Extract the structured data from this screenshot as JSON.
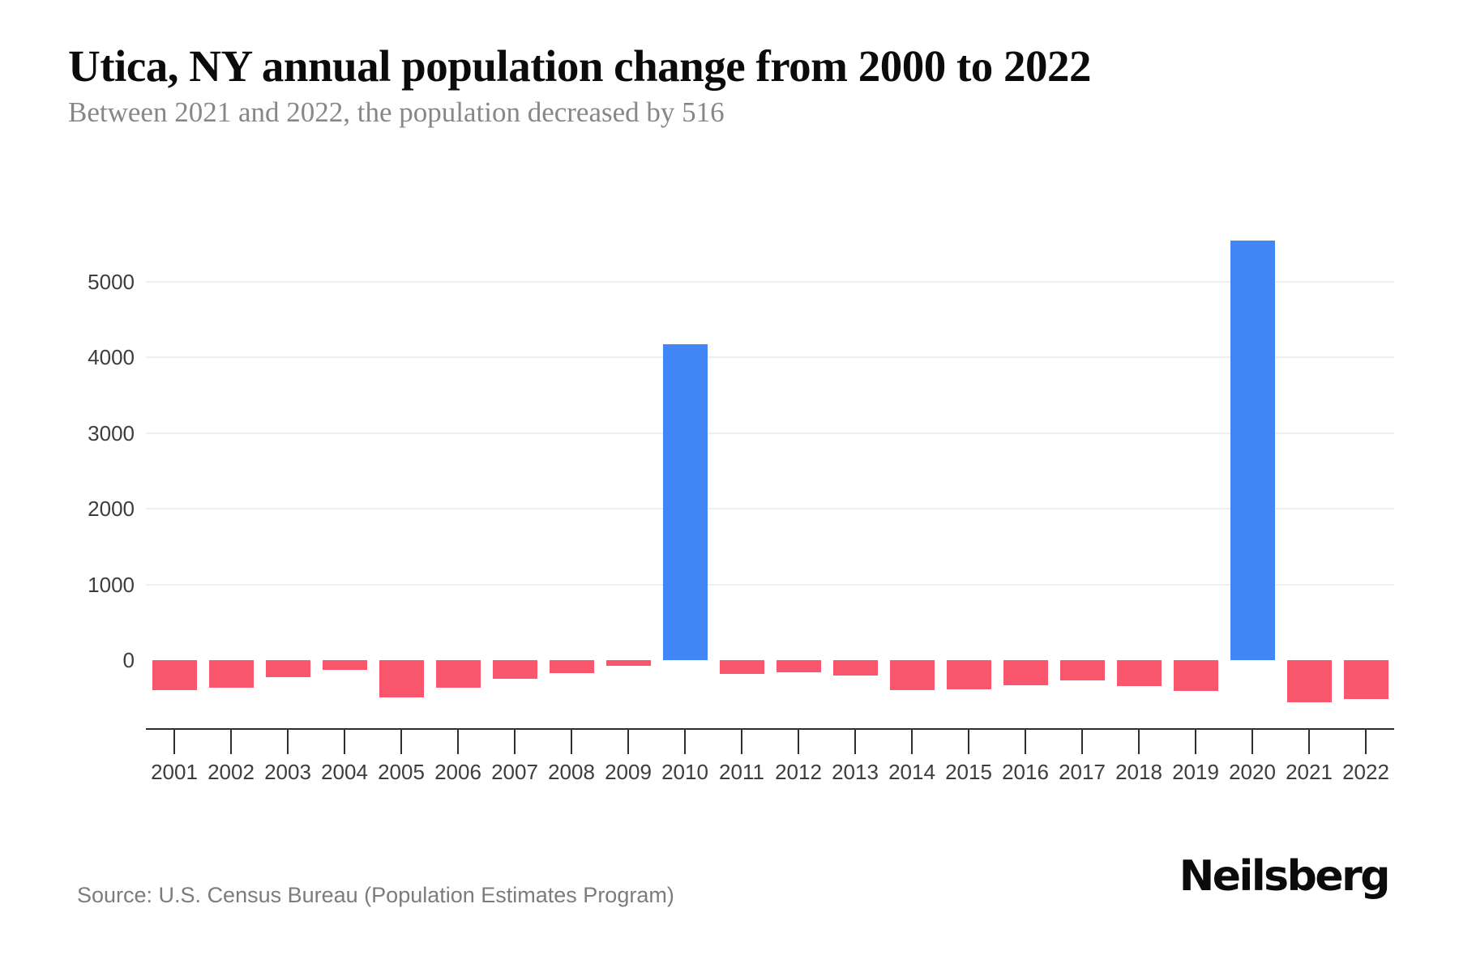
{
  "header": {
    "title": "Utica, NY annual population change from 2000 to 2022",
    "subtitle": "Between 2021 and 2022, the population decreased by 516"
  },
  "footer": {
    "source": "Source: U.S. Census Bureau (Population Estimates Program)",
    "brand": "Neilsberg"
  },
  "chart_data": {
    "type": "bar",
    "title": "Utica, NY annual population change from 2000 to 2022",
    "subtitle": "Between 2021 and 2022, the population decreased by 516",
    "categories": [
      "2001",
      "2002",
      "2003",
      "2004",
      "2005",
      "2006",
      "2007",
      "2008",
      "2009",
      "2010",
      "2011",
      "2012",
      "2013",
      "2014",
      "2015",
      "2016",
      "2017",
      "2018",
      "2019",
      "2020",
      "2021",
      "2022"
    ],
    "values": [
      -400,
      -360,
      -220,
      -130,
      -490,
      -360,
      -250,
      -175,
      -75,
      4172,
      -185,
      -160,
      -200,
      -400,
      -385,
      -330,
      -270,
      -345,
      -405,
      5542,
      -555,
      -516
    ],
    "xlabel": "",
    "ylabel": "",
    "ylim": [
      -600,
      6000
    ],
    "yticks": [
      0,
      1000,
      2000,
      3000,
      4000,
      5000
    ],
    "grid": true,
    "legend_position": "none",
    "colors": {
      "positive": "#4285F4",
      "negative": "#F8566D",
      "gridline": "#efefef",
      "axis_line": "#2e2e2e",
      "tick_label": "#3d3d3d"
    }
  }
}
